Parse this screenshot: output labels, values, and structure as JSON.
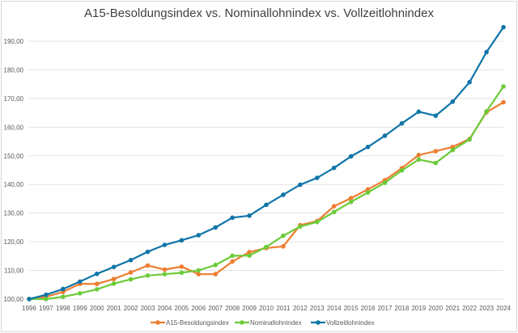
{
  "chart_data": {
    "type": "line",
    "title": "A15-Besoldungsindex vs. Nominallohnindex vs. Vollzeitlohnindex",
    "xlabel": "",
    "ylabel": "",
    "x": [
      1996,
      1997,
      1998,
      1999,
      2000,
      2001,
      2002,
      2003,
      2004,
      2005,
      2006,
      2007,
      2008,
      2009,
      2010,
      2011,
      2012,
      2013,
      2014,
      2015,
      2016,
      2017,
      2018,
      2019,
      2020,
      2021,
      2022,
      2023,
      2024
    ],
    "y_ticks": [
      "100,00",
      "110,00",
      "120,00",
      "130,00",
      "140,00",
      "150,00",
      "160,00",
      "170,00",
      "180,00",
      "190,00"
    ],
    "ylim": [
      100,
      190
    ],
    "grid": true,
    "legend_position": "bottom",
    "series": [
      {
        "name": "A15-Besoldungsindex",
        "color": "#ED7D31",
        "values": [
          100,
          100.8,
          102.5,
          105.3,
          105.3,
          107.0,
          109.3,
          111.7,
          110.3,
          111.3,
          108.7,
          108.7,
          113.1,
          116.4,
          117.8,
          118.4,
          125.8,
          127.2,
          132.4,
          135.2,
          138.3,
          141.5,
          145.7,
          150.3,
          151.6,
          153.1,
          155.9,
          165.2,
          168.7
        ]
      },
      {
        "name": "Nominallohnindex",
        "color": "#6CCB3A",
        "values": [
          100,
          100,
          100.8,
          102.0,
          103.4,
          105.4,
          106.9,
          108.2,
          108.7,
          109.2,
          110.0,
          111.9,
          115.1,
          115.2,
          118.2,
          122.1,
          125.3,
          126.9,
          130.4,
          133.9,
          137.2,
          140.6,
          144.9,
          148.7,
          147.5,
          152.0,
          155.7,
          165.5,
          174.2
        ]
      },
      {
        "name": "Vollzeitlohnindex",
        "color": "#0F75A8",
        "values": [
          100,
          101.5,
          103.5,
          106.1,
          108.8,
          111.2,
          113.6,
          116.5,
          118.9,
          120.5,
          122.3,
          125.0,
          128.4,
          129.1,
          132.9,
          136.4,
          139.9,
          142.3,
          145.8,
          149.8,
          153.1,
          157.0,
          161.3,
          165.4,
          164.0,
          168.9,
          175.7,
          186.2,
          194.9
        ]
      }
    ]
  }
}
